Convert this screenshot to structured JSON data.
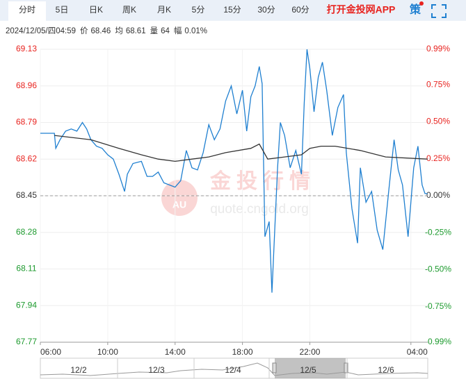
{
  "tabs": [
    "分时",
    "5日",
    "日K",
    "周K",
    "月K",
    "5分",
    "15分",
    "30分",
    "60分"
  ],
  "app_link": "打开金投网APP",
  "strategy_icon": "策",
  "info": {
    "datetime": "2024/12/05/四04:59",
    "price_label": "价",
    "price": 68.46,
    "avg_label": "均",
    "avg": 68.61,
    "volume_label": "量",
    "volume": 64,
    "change_label": "幅",
    "change": "0.01%"
  },
  "watermark": {
    "name": "金投行情",
    "url": "quote.cngold.org",
    "logo": "AU"
  },
  "chart_data": {
    "type": "line",
    "xlim": [
      "06:00",
      "05:00"
    ],
    "xticks": [
      "06:00",
      "10:00",
      "14:00",
      "18:00",
      "22:00",
      "04:00"
    ],
    "ylim": [
      67.77,
      69.13
    ],
    "yticks": [
      67.77,
      67.94,
      68.11,
      68.28,
      68.45,
      68.62,
      68.79,
      68.96,
      69.13
    ],
    "y2lim": [
      -0.99,
      0.99
    ],
    "y2ticks": [
      {
        "value": -0.99,
        "label": "-0.99%"
      },
      {
        "value": -0.75,
        "label": "-0.75%"
      },
      {
        "value": -0.5,
        "label": "-0.50%"
      },
      {
        "value": -0.25,
        "label": "-0.25%"
      },
      {
        "value": 0,
        "label": "0.00%"
      },
      {
        "value": 0.25,
        "label": "0.25%"
      },
      {
        "value": 0.5,
        "label": "0.50%"
      },
      {
        "value": 0.75,
        "label": "0.75%"
      },
      {
        "value": 0.99,
        "label": "0.99%"
      }
    ],
    "baseline": 68.45,
    "grid": true,
    "up_color": "#e8231f",
    "down_color": "#1d9a2e",
    "series": [
      {
        "color": "#1e7fd0",
        "x": [
          "06:00",
          "06:50",
          "06:55",
          "07:10",
          "07:30",
          "07:50",
          "08:10",
          "08:30",
          "08:45",
          "09:00",
          "09:20",
          "09:40",
          "10:00",
          "10:20",
          "10:40",
          "11:00",
          "11:10",
          "11:30",
          "12:00",
          "12:20",
          "12:40",
          "13:00",
          "13:20",
          "13:40",
          "14:00",
          "14:20",
          "14:40",
          "15:00",
          "15:20",
          "15:40",
          "16:00",
          "16:20",
          "16:40",
          "17:00",
          "17:20",
          "17:40",
          "18:00",
          "18:15",
          "18:30",
          "18:45",
          "19:00",
          "19:10",
          "19:20",
          "19:35",
          "19:45",
          "19:55",
          "20:05",
          "20:15",
          "20:30",
          "20:50",
          "21:10",
          "21:30",
          "21:40",
          "21:50",
          "22:00",
          "22:15",
          "22:30",
          "22:45",
          "23:00",
          "23:20",
          "23:40",
          "00:00",
          "00:10",
          "00:30",
          "00:50",
          "01:00",
          "01:20",
          "01:40",
          "02:00",
          "02:20",
          "02:40",
          "03:00",
          "03:15",
          "03:30",
          "03:50",
          "04:10",
          "04:25",
          "04:40",
          "04:50",
          "04:59"
        ],
        "values": [
          68.74,
          68.74,
          68.67,
          68.71,
          68.75,
          68.76,
          68.75,
          68.79,
          68.76,
          68.71,
          68.68,
          68.67,
          68.64,
          68.62,
          68.55,
          68.47,
          68.55,
          68.6,
          68.61,
          68.54,
          68.54,
          68.56,
          68.51,
          68.5,
          68.49,
          68.52,
          68.66,
          68.58,
          68.57,
          68.65,
          68.78,
          68.71,
          68.76,
          68.89,
          68.96,
          68.83,
          68.94,
          68.75,
          68.91,
          68.96,
          69.05,
          68.97,
          68.26,
          68.33,
          68.0,
          68.29,
          68.58,
          68.79,
          68.73,
          68.58,
          68.66,
          68.55,
          68.88,
          69.13,
          69.04,
          68.84,
          69.0,
          69.07,
          68.94,
          68.73,
          68.86,
          68.92,
          68.65,
          68.39,
          68.23,
          68.58,
          68.42,
          68.47,
          68.29,
          68.2,
          68.46,
          68.71,
          68.57,
          68.5,
          68.26,
          68.58,
          68.68,
          68.5,
          68.46,
          68.46
        ]
      },
      {
        "color": "#333333",
        "x": [
          "06:50",
          "09:00",
          "10:40",
          "12:00",
          "13:00",
          "14:00",
          "15:00",
          "16:00",
          "17:00",
          "18:30",
          "19:00",
          "19:30",
          "20:30",
          "21:30",
          "22:00",
          "22:40",
          "23:30",
          "01:00",
          "02:30",
          "04:59"
        ],
        "values": [
          68.73,
          68.71,
          68.67,
          68.64,
          68.62,
          68.61,
          68.62,
          68.63,
          68.65,
          68.67,
          68.69,
          68.62,
          68.63,
          68.64,
          68.67,
          68.68,
          68.68,
          68.66,
          68.63,
          68.62
        ]
      }
    ]
  },
  "navigator": {
    "dates": [
      "12/2",
      "12/3",
      "12/4",
      "12/5",
      "12/6"
    ]
  }
}
